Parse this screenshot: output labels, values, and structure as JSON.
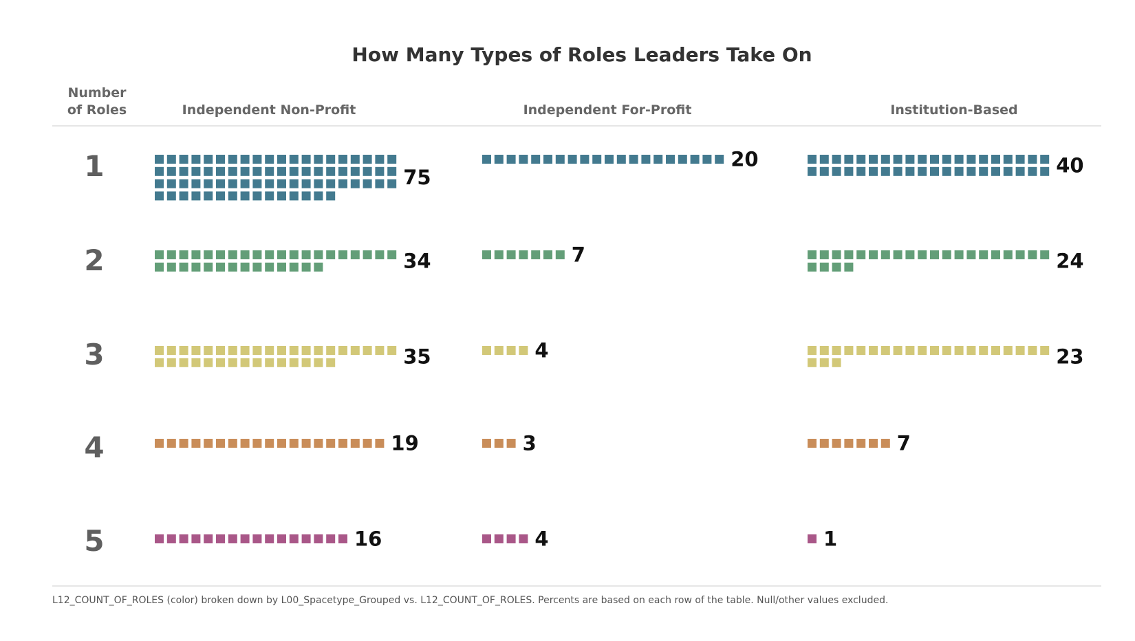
{
  "chart_data": {
    "type": "unit_bar",
    "title": "How Many Types of Roles Leaders Take On",
    "row_header": [
      "Number",
      "of Roles"
    ],
    "columns": [
      "Independent Non-Profit",
      "Independent For-Profit",
      "Institution-Based"
    ],
    "rows": [
      "1",
      "2",
      "3",
      "4",
      "5"
    ],
    "series_colors": [
      "#437a8f",
      "#639e78",
      "#d2c878",
      "#c98d59",
      "#a95788"
    ],
    "values": [
      [
        75,
        20,
        40
      ],
      [
        34,
        7,
        24
      ],
      [
        35,
        4,
        23
      ],
      [
        19,
        3,
        7
      ],
      [
        16,
        4,
        1
      ]
    ],
    "footnote": "L12_COUNT_OF_ROLES (color) broken down by L00_Spacetype_Grouped vs. L12_COUNT_OF_ROLES. Percents are based on each row of the table. Null/other values excluded."
  }
}
